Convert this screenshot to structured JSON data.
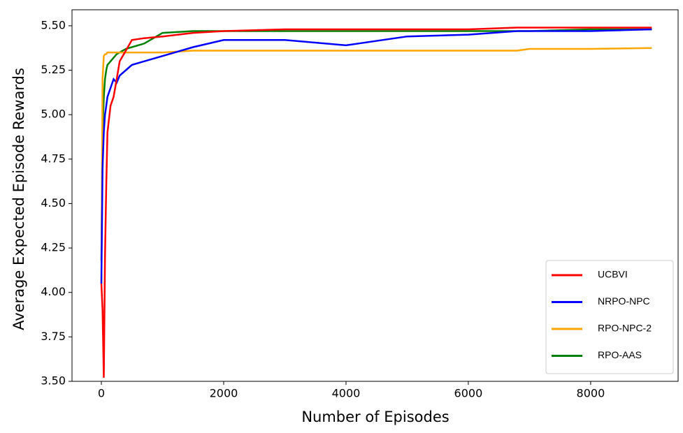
{
  "chart_data": {
    "type": "line",
    "xlabel": "Number of Episodes",
    "ylabel": "Average Expected Episode Rewards",
    "x": [
      0,
      20,
      40,
      60,
      80,
      100,
      150,
      200,
      250,
      300,
      400,
      500,
      700,
      1000,
      1500,
      2000,
      3000,
      4000,
      5000,
      6000,
      6800,
      7000,
      8000,
      9000
    ],
    "series": [
      {
        "name": "UCBVI",
        "color": "#ff0000",
        "values": [
          4.05,
          3.9,
          3.52,
          4.2,
          4.6,
          4.9,
          5.05,
          5.1,
          5.2,
          5.3,
          5.36,
          5.42,
          5.43,
          5.44,
          5.46,
          5.47,
          5.48,
          5.48,
          5.48,
          5.48,
          5.49,
          5.49,
          5.49,
          5.49
        ]
      },
      {
        "name": "NRPO-NPC",
        "color": "#0000ff",
        "values": [
          4.05,
          4.7,
          4.9,
          5.0,
          5.05,
          5.1,
          5.15,
          5.2,
          5.18,
          5.22,
          5.25,
          5.28,
          5.3,
          5.33,
          5.38,
          5.42,
          5.42,
          5.39,
          5.44,
          5.45,
          5.47,
          5.47,
          5.47,
          5.48
        ]
      },
      {
        "name": "RPO-NPC-2",
        "color": "#ffa500",
        "values": [
          4.05,
          5.2,
          5.33,
          5.34,
          5.34,
          5.35,
          5.35,
          5.35,
          5.35,
          5.35,
          5.35,
          5.35,
          5.35,
          5.35,
          5.36,
          5.36,
          5.36,
          5.36,
          5.36,
          5.36,
          5.36,
          5.37,
          5.37,
          5.375
        ]
      },
      {
        "name": "RPO-AAS",
        "color": "#008000",
        "values": [
          4.18,
          4.9,
          5.1,
          5.2,
          5.25,
          5.28,
          5.3,
          5.32,
          5.34,
          5.35,
          5.37,
          5.38,
          5.4,
          5.46,
          5.47,
          5.47,
          5.47,
          5.47,
          5.47,
          5.47,
          5.47,
          5.47,
          5.48,
          5.48
        ]
      }
    ],
    "xlim": [
      -480,
      9430
    ],
    "ylim": [
      3.5,
      5.59
    ],
    "xticks": [
      0,
      2000,
      4000,
      6000,
      8000
    ],
    "yticks": [
      {
        "value": 3.5,
        "label": "3.50"
      },
      {
        "value": 3.75,
        "label": "3.75"
      },
      {
        "value": 4.0,
        "label": "4.00"
      },
      {
        "value": 4.25,
        "label": "4.25"
      },
      {
        "value": 4.5,
        "label": "4.50"
      },
      {
        "value": 4.75,
        "label": "4.75"
      },
      {
        "value": 5.0,
        "label": "5.00"
      },
      {
        "value": 5.25,
        "label": "5.25"
      },
      {
        "value": 5.5,
        "label": "5.50"
      }
    ],
    "legend": "lower right"
  }
}
